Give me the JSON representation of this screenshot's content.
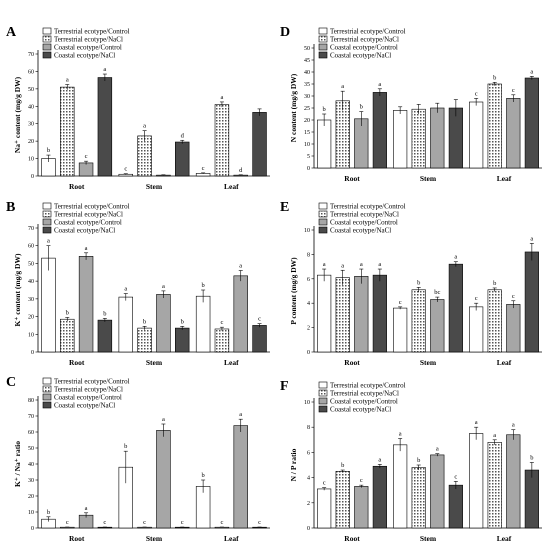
{
  "colors": {
    "terrestrial_control": "#ffffff",
    "terrestrial_nacl": "#d8d8d8",
    "coastal_control": "#a6a6a6",
    "coastal_nacl": "#4a4a4a"
  },
  "chart_data": [
    {
      "type": "bar",
      "panel_letter": "A",
      "ylabel": "Na⁺ content (mg/g DW)",
      "categories": [
        "Root",
        "Stem",
        "Leaf"
      ],
      "yticks": [
        "0",
        "10",
        "20",
        "30",
        "40",
        "50",
        "60",
        "70"
      ],
      "ylim": [
        0,
        70
      ],
      "legend_position": "top-left",
      "series": [
        {
          "name": "Terrestrial ecotype/Control",
          "values": [
            10,
            1,
            1.5
          ],
          "errors": [
            2,
            0.3,
            0.3
          ],
          "letters": [
            "b",
            "c",
            "c"
          ]
        },
        {
          "name": "Terrestrial ecotype/NaCl",
          "values": [
            51,
            23,
            41
          ],
          "errors": [
            1.5,
            3,
            1.5
          ],
          "letters": [
            "a",
            "a",
            "a"
          ]
        },
        {
          "name": "Coastal ecotype/Control",
          "values": [
            7.5,
            0.5,
            0.5
          ],
          "errors": [
            1,
            0.2,
            0.2
          ],
          "letters": [
            "c",
            "",
            "d"
          ]
        },
        {
          "name": "Coastal ecotype/NaCl",
          "values": [
            56.5,
            19.5,
            36.5
          ],
          "errors": [
            2,
            1,
            2
          ],
          "letters": [
            "a",
            "d",
            ""
          ]
        }
      ]
    },
    {
      "type": "bar",
      "panel_letter": "B",
      "ylabel": "K⁺ content (mg/g DW)",
      "categories": [
        "Root",
        "Stem",
        "Leaf"
      ],
      "yticks": [
        "0",
        "10",
        "20",
        "30",
        "40",
        "50",
        "60",
        "70"
      ],
      "ylim": [
        0,
        70
      ],
      "legend_position": "top-left",
      "series": [
        {
          "name": "Terrestrial ecotype/Control",
          "values": [
            53,
            31,
            31.5
          ],
          "errors": [
            7,
            2,
            3.5
          ],
          "letters": [
            "a",
            "a",
            "b"
          ]
        },
        {
          "name": "Terrestrial ecotype/NaCl",
          "values": [
            18.5,
            13.5,
            13
          ],
          "errors": [
            1,
            1,
            1
          ],
          "letters": [
            "b",
            "b",
            "c"
          ]
        },
        {
          "name": "Coastal ecotype/Control",
          "values": [
            54,
            32.5,
            43
          ],
          "errors": [
            2,
            2,
            3
          ],
          "letters": [
            "a",
            "a",
            "a"
          ]
        },
        {
          "name": "Coastal ecotype/NaCl",
          "values": [
            18,
            13.5,
            15
          ],
          "errors": [
            1,
            1,
            1
          ],
          "letters": [
            "b",
            "b",
            "c"
          ]
        }
      ]
    },
    {
      "type": "bar",
      "panel_letter": "C",
      "ylabel": "K⁺ / Na⁺ ratio",
      "categories": [
        "Root",
        "Stem",
        "Leaf"
      ],
      "yticks": [
        "0",
        "10",
        "20",
        "30",
        "40",
        "50",
        "60",
        "70",
        "80"
      ],
      "ylim": [
        0,
        80
      ],
      "legend_position": "top-left",
      "series": [
        {
          "name": "Terrestrial ecotype/Control",
          "values": [
            5.5,
            38,
            26
          ],
          "errors": [
            1.5,
            10,
            4
          ],
          "letters": [
            "b",
            "b",
            "b"
          ]
        },
        {
          "name": "Terrestrial ecotype/NaCl",
          "values": [
            0.5,
            0.5,
            0.5
          ],
          "errors": [
            0.1,
            0.1,
            0.1
          ],
          "letters": [
            "c",
            "c",
            "c"
          ]
        },
        {
          "name": "Coastal ecotype/Control",
          "values": [
            8,
            61,
            64
          ],
          "errors": [
            1.5,
            4,
            4
          ],
          "letters": [
            "a",
            "a",
            "a"
          ]
        },
        {
          "name": "Coastal ecotype/NaCl",
          "values": [
            0.5,
            0.5,
            0.5
          ],
          "errors": [
            0.1,
            0.1,
            0.1
          ],
          "letters": [
            "c",
            "c",
            "c"
          ]
        }
      ]
    },
    {
      "type": "bar",
      "panel_letter": "D",
      "ylabel": "N content (mg/g DW)",
      "categories": [
        "Root",
        "Stem",
        "Leaf"
      ],
      "yticks": [
        "0",
        "5",
        "10",
        "15",
        "20",
        "25",
        "30",
        "35",
        "40",
        "45",
        "50"
      ],
      "ylim": [
        0,
        50
      ],
      "legend_position": "top-left",
      "series": [
        {
          "name": "Terrestrial ecotype/Control",
          "values": [
            20,
            24,
            27.5
          ],
          "errors": [
            2.5,
            1.5,
            1.5
          ],
          "letters": [
            "b",
            "",
            "c"
          ]
        },
        {
          "name": "Terrestrial ecotype/NaCl",
          "values": [
            28,
            24.5,
            35
          ],
          "errors": [
            4,
            2,
            0.7
          ],
          "letters": [
            "a",
            "",
            "b"
          ]
        },
        {
          "name": "Coastal ecotype/Control",
          "values": [
            20.5,
            25,
            29
          ],
          "errors": [
            3,
            2,
            1.5
          ],
          "letters": [
            "b",
            "",
            "c"
          ]
        },
        {
          "name": "Coastal ecotype/NaCl",
          "values": [
            31.5,
            25,
            37.5
          ],
          "errors": [
            1.5,
            3.5,
            0.7
          ],
          "letters": [
            "a",
            "",
            "a"
          ]
        }
      ]
    },
    {
      "type": "bar",
      "panel_letter": "E",
      "ylabel": "P content (mg/g DW)",
      "categories": [
        "Root",
        "Stem",
        "Leaf"
      ],
      "yticks": [
        "0",
        "2",
        "4",
        "6",
        "8",
        "10"
      ],
      "ylim": [
        0,
        10
      ],
      "legend_position": "top-left",
      "series": [
        {
          "name": "Terrestrial ecotype/Control",
          "values": [
            6.3,
            3.6,
            3.7
          ],
          "errors": [
            0.5,
            0.1,
            0.3
          ],
          "letters": [
            "a",
            "c",
            "c"
          ]
        },
        {
          "name": "Terrestrial ecotype/NaCl",
          "values": [
            6.1,
            5.1,
            5.1
          ],
          "errors": [
            0.6,
            0.2,
            0.15
          ],
          "letters": [
            "a",
            "b",
            "b"
          ]
        },
        {
          "name": "Coastal ecotype/Control",
          "values": [
            6.2,
            4.3,
            3.9
          ],
          "errors": [
            0.6,
            0.2,
            0.3
          ],
          "letters": [
            "a",
            "bc",
            "c"
          ]
        },
        {
          "name": "Coastal ecotype/NaCl",
          "values": [
            6.3,
            7.2,
            8.2
          ],
          "errors": [
            0.5,
            0.2,
            0.7
          ],
          "letters": [
            "a",
            "a",
            "a"
          ]
        }
      ]
    },
    {
      "type": "bar",
      "panel_letter": "F",
      "ylabel": "N / P ratio",
      "categories": [
        "Root",
        "Stem",
        "Leaf"
      ],
      "yticks": [
        "0",
        "2",
        "4",
        "6",
        "8",
        "10"
      ],
      "ylim": [
        0,
        10
      ],
      "legend_position": "top-left",
      "series": [
        {
          "name": "Terrestrial ecotype/Control",
          "values": [
            3.1,
            6.6,
            7.5
          ],
          "errors": [
            0.1,
            0.5,
            0.5
          ],
          "letters": [
            "c",
            "a",
            "a"
          ]
        },
        {
          "name": "Terrestrial ecotype/NaCl",
          "values": [
            4.5,
            4.8,
            6.8
          ],
          "errors": [
            0.1,
            0.2,
            0.2
          ],
          "letters": [
            "b",
            "b",
            "a"
          ]
        },
        {
          "name": "Coastal ecotype/Control",
          "values": [
            3.3,
            5.8,
            7.4
          ],
          "errors": [
            0.1,
            0.1,
            0.4
          ],
          "letters": [
            "c",
            "a",
            "a"
          ]
        },
        {
          "name": "Coastal ecotype/NaCl",
          "values": [
            4.9,
            3.4,
            4.6
          ],
          "errors": [
            0.15,
            0.3,
            0.6
          ],
          "letters": [
            "a",
            "c",
            "b"
          ]
        }
      ]
    }
  ]
}
